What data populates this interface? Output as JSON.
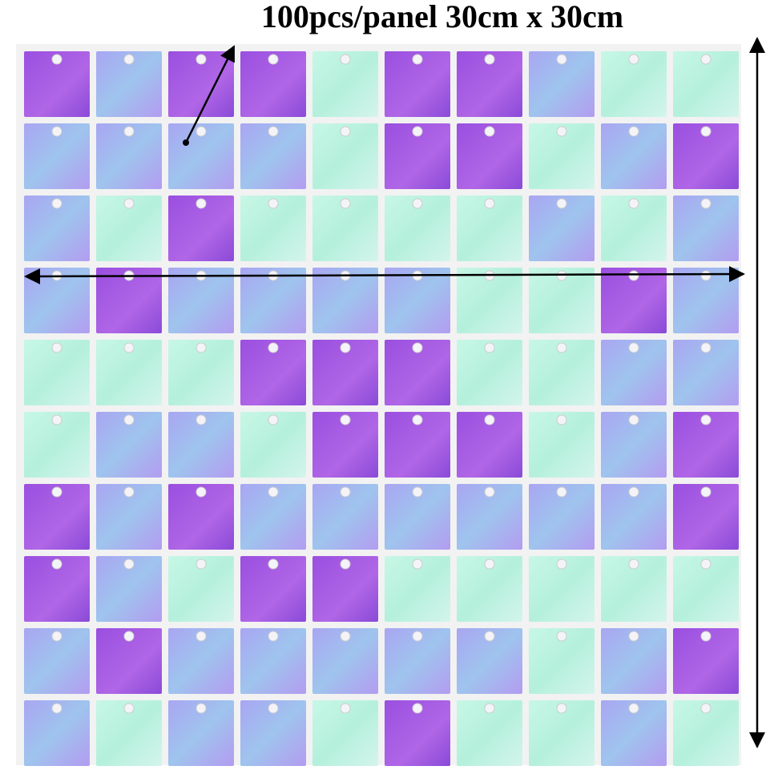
{
  "caption": "100pcs/panel 30cm x 30cm"
}
